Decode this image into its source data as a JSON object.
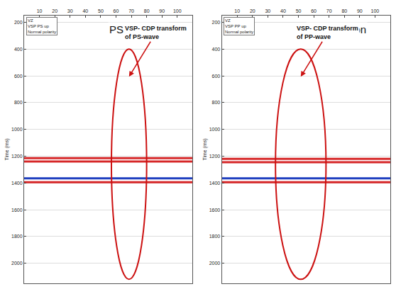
{
  "chart_data": [
    {
      "type": "section",
      "title": "PS - Section",
      "header": [
        "VZ",
        "VSP PS up",
        "Normal polarity"
      ],
      "annotation": "VSP- CDP transform of PS-wave",
      "y_label": "Time (ms)",
      "xlim": [
        0,
        110
      ],
      "xticks": [
        10,
        20,
        30,
        40,
        50,
        60,
        70,
        80,
        90,
        100
      ],
      "ylim": [
        150,
        2150
      ],
      "yticks": [
        200,
        400,
        600,
        800,
        1000,
        1200,
        1400,
        1600,
        1800,
        2000
      ],
      "region": {
        "x": [
          57,
          80
        ],
        "y": [
          400,
          2120
        ]
      },
      "reflectors": {
        "values": [
          1215,
          1240,
          1365,
          1395
        ],
        "colors": [
          "#d62728",
          "#d62728",
          "#1f3fbf",
          "#d62728"
        ]
      },
      "color": "#cc1111"
    },
    {
      "type": "section",
      "title": "PP - Section",
      "header": [
        "VZ",
        "VSP PP up",
        "Normal polarity"
      ],
      "annotation": "VSP- CDP transform of PP-wave",
      "y_label": "Time (ms)",
      "xlim": [
        0,
        110
      ],
      "xticks": [
        10,
        20,
        30,
        40,
        50,
        60,
        70,
        80,
        90,
        100
      ],
      "ylim": [
        150,
        2150
      ],
      "yticks": [
        200,
        400,
        600,
        800,
        1000,
        1200,
        1400,
        1600,
        1800,
        2000
      ],
      "region": {
        "x": [
          35,
          68
        ],
        "y": [
          400,
          2120
        ]
      },
      "reflectors": {
        "values": [
          1220,
          1245,
          1365,
          1395
        ],
        "colors": [
          "#d62728",
          "#d62728",
          "#1f3fbf",
          "#d62728"
        ]
      },
      "color": "#cc1111"
    }
  ]
}
